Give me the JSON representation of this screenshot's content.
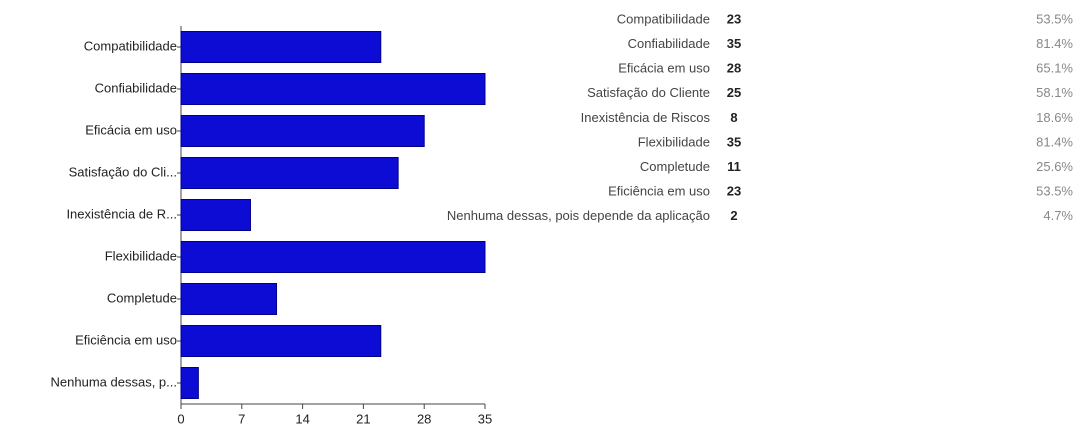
{
  "chart_data": {
    "type": "bar",
    "orientation": "horizontal",
    "categories": [
      "Compatibilidade",
      "Confiabilidade",
      "Eficácia em uso",
      "Satisfação do Cli...",
      "Inexistência de R...",
      "Flexibilidade",
      "Completude",
      "Eficiência em uso",
      "Nenhuma dessas, p..."
    ],
    "values": [
      23,
      35,
      28,
      25,
      8,
      35,
      11,
      23,
      2
    ],
    "color": "#0c0cd4",
    "xlim": [
      0,
      35
    ],
    "xticks": [
      0,
      7,
      14,
      21,
      28,
      35
    ],
    "grid": false
  },
  "table": {
    "rows": [
      [
        "Compatibilidade",
        "53.5%"
      ],
      [
        "Confiabilidade",
        "81.4%"
      ],
      [
        "Eficácia em uso",
        "65.1%"
      ],
      [
        "Satisfação do Cliente",
        "58.1%"
      ],
      [
        "Inexistência de Riscos",
        "18.6%"
      ],
      [
        "Flexibilidade",
        "81.4%"
      ],
      [
        "Completude",
        "25.6%"
      ],
      [
        "Eficiência em uso",
        "53.5%"
      ],
      [
        "Nenhuma dessas, pois depende da aplicação",
        "4.7%"
      ]
    ]
  }
}
